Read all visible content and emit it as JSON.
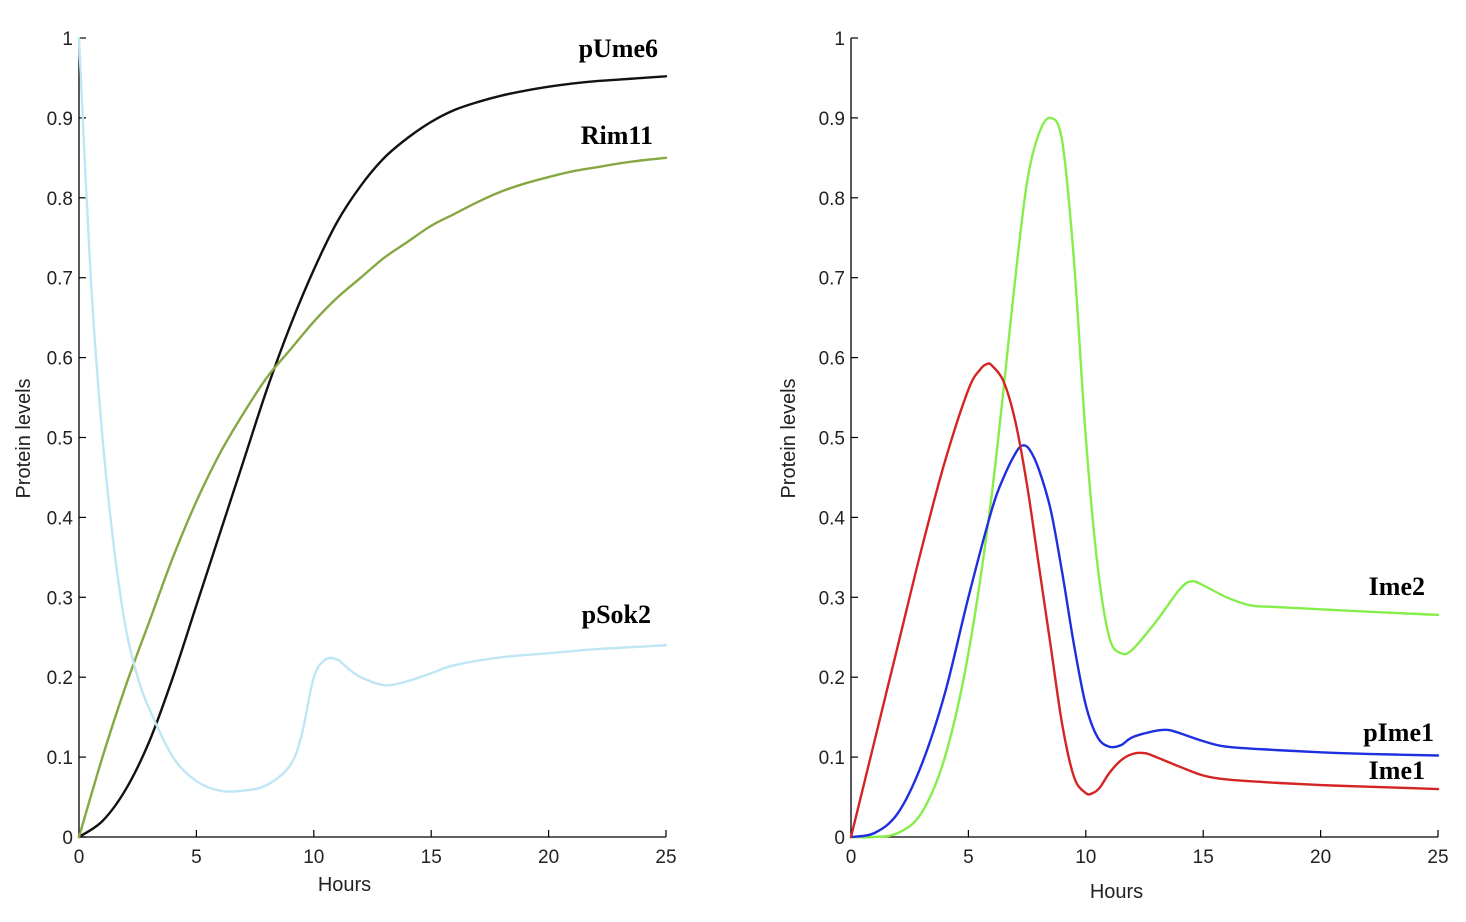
{
  "chart_data": [
    {
      "type": "line",
      "xlabel": "Hours",
      "ylabel": "Protein levels",
      "xlim": [
        0,
        25
      ],
      "ylim": [
        0,
        1
      ],
      "xticks": [
        0,
        5,
        10,
        15,
        20,
        25
      ],
      "yticks": [
        0,
        0.1,
        0.2,
        0.3,
        0.4,
        0.5,
        0.6,
        0.7,
        0.8,
        0.9,
        1
      ],
      "ytick_labels": [
        "0",
        "0.1",
        "0.2",
        "0.3",
        "0.4",
        "0.5",
        "0.6",
        "0.7",
        "0.8",
        "0.9",
        "1"
      ],
      "grid": false,
      "series": [
        {
          "name": "pUme6",
          "color": "#111111",
          "x": [
            0,
            1,
            2,
            3,
            4,
            5,
            6,
            7,
            8,
            9,
            10,
            11,
            12,
            13,
            14,
            15,
            16,
            17,
            18,
            19,
            20,
            21,
            22,
            23,
            24,
            25
          ],
          "y": [
            0,
            0.02,
            0.06,
            0.12,
            0.2,
            0.29,
            0.38,
            0.47,
            0.56,
            0.64,
            0.71,
            0.77,
            0.815,
            0.85,
            0.875,
            0.895,
            0.91,
            0.92,
            0.928,
            0.934,
            0.939,
            0.943,
            0.946,
            0.948,
            0.95,
            0.952
          ]
        },
        {
          "name": "Rim11",
          "color": "#86a843",
          "x": [
            0,
            1,
            2,
            3,
            4,
            5,
            6,
            7,
            8,
            9,
            10,
            11,
            12,
            13,
            14,
            15,
            16,
            17,
            18,
            19,
            20,
            21,
            22,
            23,
            24,
            25
          ],
          "y": [
            0,
            0.1,
            0.19,
            0.27,
            0.35,
            0.42,
            0.48,
            0.53,
            0.575,
            0.61,
            0.645,
            0.675,
            0.7,
            0.725,
            0.745,
            0.765,
            0.78,
            0.795,
            0.808,
            0.818,
            0.826,
            0.833,
            0.838,
            0.843,
            0.847,
            0.85
          ]
        },
        {
          "name": "pSok2",
          "color": "#bfe6f5",
          "x": [
            0,
            0.5,
            1,
            1.5,
            2,
            2.5,
            3,
            4,
            5,
            6,
            7,
            8,
            9,
            9.5,
            10,
            10.5,
            11,
            11.5,
            12,
            13,
            14,
            15,
            16,
            18,
            20,
            22,
            25
          ],
          "y": [
            1,
            0.7,
            0.5,
            0.36,
            0.26,
            0.2,
            0.16,
            0.1,
            0.07,
            0.058,
            0.058,
            0.065,
            0.09,
            0.13,
            0.2,
            0.222,
            0.222,
            0.21,
            0.2,
            0.19,
            0.195,
            0.205,
            0.215,
            0.225,
            0.23,
            0.235,
            0.24
          ]
        }
      ]
    },
    {
      "type": "line",
      "xlabel": "Hours",
      "ylabel": "Protein levels",
      "xlim": [
        0,
        25
      ],
      "ylim": [
        0,
        1
      ],
      "xticks": [
        0,
        5,
        10,
        15,
        20,
        25
      ],
      "yticks": [
        0,
        0.1,
        0.2,
        0.3,
        0.4,
        0.5,
        0.6,
        0.7,
        0.8,
        0.9,
        1
      ],
      "ytick_labels": [
        "0",
        "0.1",
        "0.2",
        "0.3",
        "0.4",
        "0.5",
        "0.6",
        "0.7",
        "0.8",
        "0.9",
        "1"
      ],
      "grid": false,
      "series": [
        {
          "name": "Ime2",
          "color": "#86ee4a",
          "x": [
            0,
            1,
            2,
            3,
            4,
            5,
            6,
            7,
            7.5,
            8,
            8.5,
            9,
            9.5,
            10,
            10.5,
            11,
            11.5,
            12,
            13,
            14,
            14.5,
            15,
            16,
            17,
            18,
            20,
            22,
            25
          ],
          "y": [
            0,
            0,
            0.005,
            0.03,
            0.1,
            0.23,
            0.43,
            0.7,
            0.82,
            0.88,
            0.9,
            0.87,
            0.72,
            0.5,
            0.34,
            0.25,
            0.23,
            0.235,
            0.27,
            0.31,
            0.32,
            0.315,
            0.3,
            0.29,
            0.288,
            0.285,
            0.282,
            0.278
          ]
        },
        {
          "name": "pIme1",
          "color": "#1f2fe0",
          "x": [
            0,
            1,
            2,
            3,
            4,
            5,
            6,
            6.5,
            7,
            7.3,
            7.6,
            8,
            8.5,
            9,
            9.5,
            10,
            10.5,
            11,
            11.5,
            12,
            13,
            13.5,
            14,
            15,
            16,
            18,
            20,
            22,
            25
          ],
          "y": [
            0,
            0.005,
            0.03,
            0.09,
            0.18,
            0.3,
            0.41,
            0.45,
            0.48,
            0.49,
            0.485,
            0.46,
            0.41,
            0.33,
            0.24,
            0.165,
            0.125,
            0.113,
            0.115,
            0.125,
            0.133,
            0.134,
            0.13,
            0.12,
            0.113,
            0.109,
            0.106,
            0.104,
            0.102
          ]
        },
        {
          "name": "Ime1",
          "color": "#d42424",
          "x": [
            0,
            0.5,
            1,
            2,
            3,
            4,
            5,
            5.5,
            5.8,
            6,
            6.5,
            7,
            7.5,
            8,
            8.5,
            9,
            9.5,
            10,
            10.3,
            10.6,
            11,
            11.5,
            12,
            12.5,
            13,
            14,
            15,
            16,
            18,
            20,
            22,
            25
          ],
          "y": [
            0,
            0.06,
            0.12,
            0.24,
            0.36,
            0.47,
            0.56,
            0.585,
            0.592,
            0.59,
            0.57,
            0.52,
            0.44,
            0.34,
            0.24,
            0.14,
            0.075,
            0.055,
            0.055,
            0.062,
            0.08,
            0.096,
            0.104,
            0.105,
            0.1,
            0.088,
            0.077,
            0.072,
            0.068,
            0.065,
            0.063,
            0.06
          ]
        }
      ]
    }
  ]
}
